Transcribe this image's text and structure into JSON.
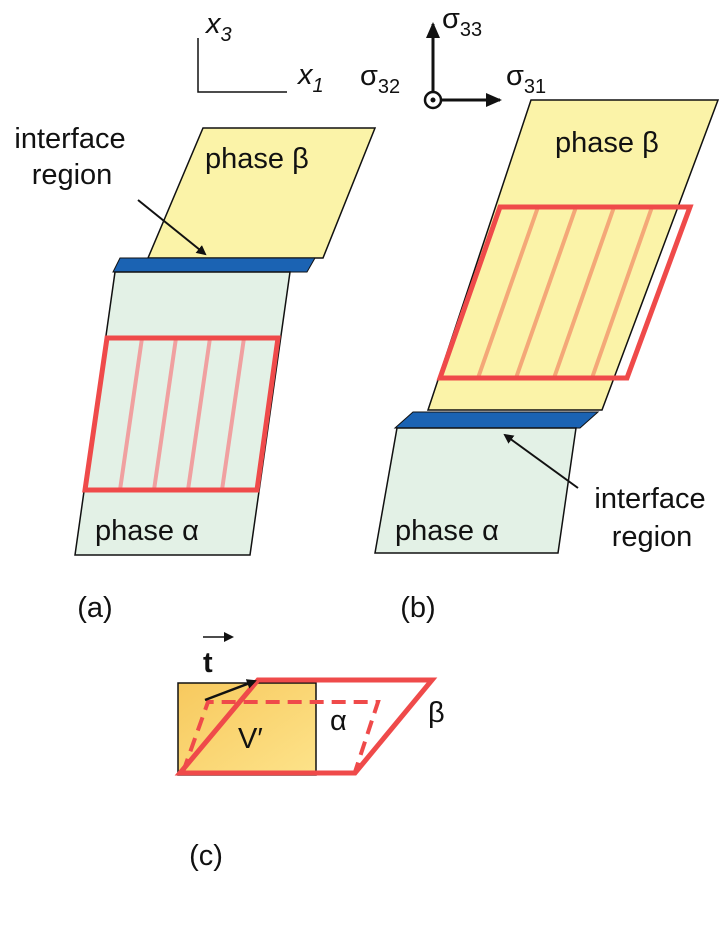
{
  "axes": {
    "vertical": {
      "symbol": "x",
      "index": "3"
    },
    "horizontal": {
      "symbol": "x",
      "index": "1"
    }
  },
  "stresses": {
    "normal": {
      "symbol": "σ",
      "index": "33"
    },
    "out_of_plane": {
      "symbol": "σ",
      "index": "32"
    },
    "shear": {
      "symbol": "σ",
      "index": "31"
    }
  },
  "panel_a": {
    "interface_label": [
      "interface",
      "region"
    ],
    "top_phase": "phase β",
    "bottom_phase": "phase α",
    "caption": "(a)"
  },
  "panel_b": {
    "interface_label": [
      "interface",
      "region"
    ],
    "top_phase": "phase β",
    "bottom_phase": "phase α",
    "caption": "(b)"
  },
  "panel_c": {
    "vector": "t",
    "inner_label": "α",
    "outer_label": "β",
    "volume_label": "V′",
    "caption": "(c)"
  }
}
